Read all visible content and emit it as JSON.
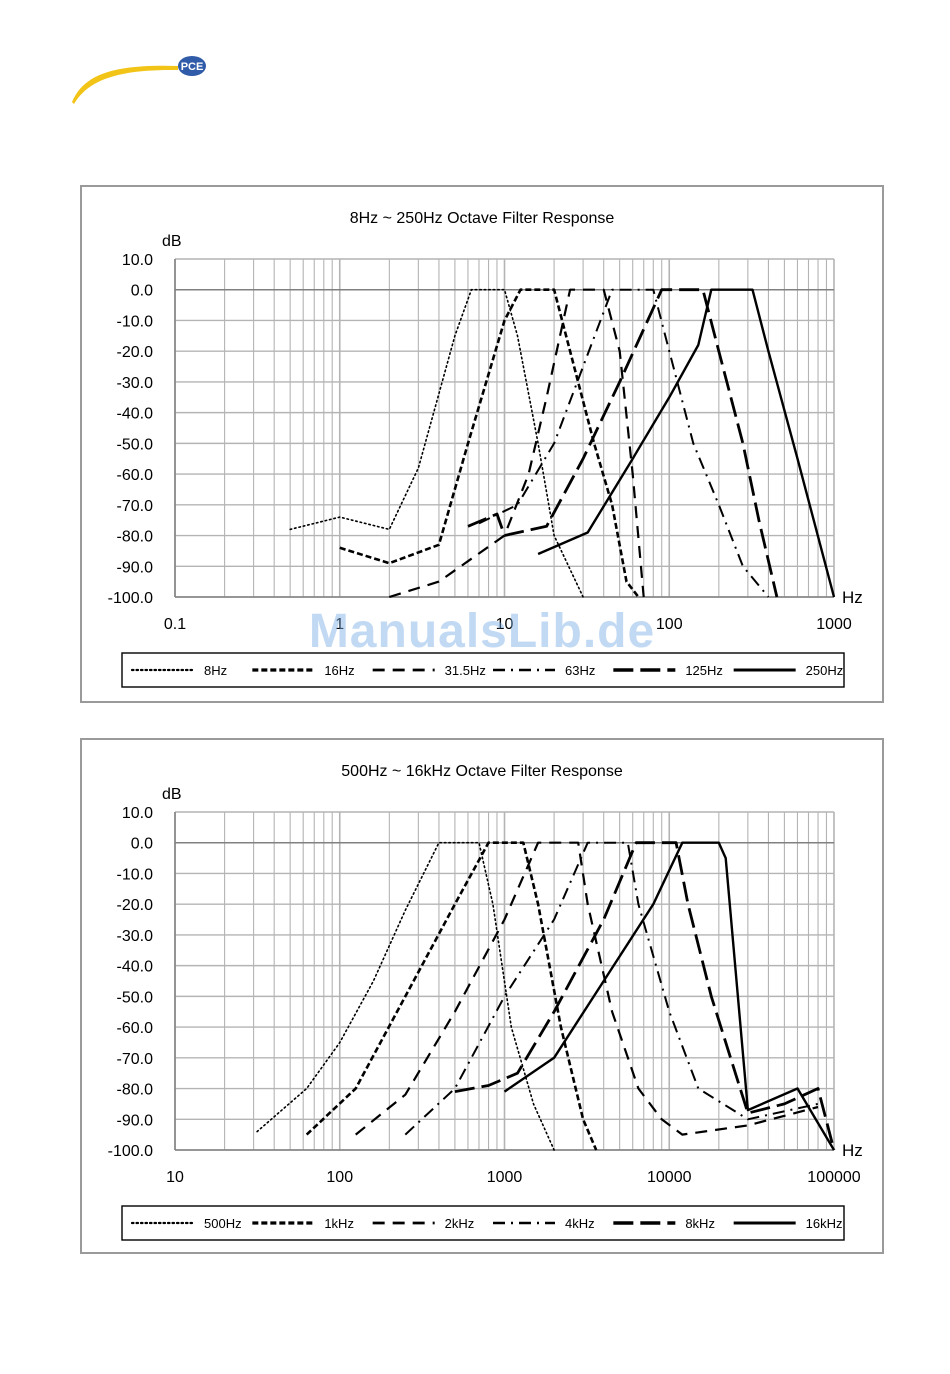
{
  "header": {
    "logo_text": "PCE",
    "logo_color": "#2f5ba8",
    "swoosh_color": "#f2c417"
  },
  "watermark": "ManualsLib.de",
  "chart_data": [
    {
      "type": "line",
      "title": "8Hz ~ 250Hz Octave Filter Response",
      "ylabel": "dB",
      "xlabel": "Hz",
      "xscale": "log",
      "xlim": [
        0.1,
        1000
      ],
      "ylim": [
        -100,
        10
      ],
      "x_ticks": [
        "0.1",
        "1",
        "10",
        "100",
        "1000"
      ],
      "y_ticks": [
        "10.0",
        "0.0",
        "-10.0",
        "-20.0",
        "-30.0",
        "-40.0",
        "-50.0",
        "-60.0",
        "-70.0",
        "-80.0",
        "-90.0",
        "-100.0"
      ],
      "grid": true,
      "legend": "bottom",
      "series": [
        {
          "name": "8Hz",
          "style": "dotted",
          "points": [
            [
              0.5,
              -78
            ],
            [
              1,
              -74
            ],
            [
              2,
              -78
            ],
            [
              3,
              -58
            ],
            [
              5,
              -15
            ],
            [
              6.3,
              0
            ],
            [
              10,
              0
            ],
            [
              12,
              -15
            ],
            [
              16,
              -50
            ],
            [
              20,
              -80
            ],
            [
              30,
              -100
            ]
          ]
        },
        {
          "name": "16Hz",
          "style": "dash-short",
          "points": [
            [
              1,
              -84
            ],
            [
              2,
              -89
            ],
            [
              4,
              -83
            ],
            [
              6,
              -50
            ],
            [
              10,
              -10
            ],
            [
              12.5,
              0
            ],
            [
              20,
              0
            ],
            [
              25,
              -20
            ],
            [
              35,
              -50
            ],
            [
              45,
              -70
            ],
            [
              55,
              -95
            ],
            [
              65,
              -100
            ]
          ]
        },
        {
          "name": "31.5Hz",
          "style": "dash-medium",
          "points": [
            [
              2,
              -100
            ],
            [
              4,
              -95
            ],
            [
              10,
              -80
            ],
            [
              14,
              -60
            ],
            [
              18,
              -35
            ],
            [
              25,
              0
            ],
            [
              40,
              0
            ],
            [
              50,
              -20
            ],
            [
              60,
              -60
            ],
            [
              70,
              -100
            ]
          ]
        },
        {
          "name": "63Hz",
          "style": "dash-dot",
          "points": [
            [
              7,
              -76
            ],
            [
              12,
              -70
            ],
            [
              20,
              -50
            ],
            [
              30,
              -25
            ],
            [
              45,
              0
            ],
            [
              80,
              0
            ],
            [
              100,
              -20
            ],
            [
              140,
              -50
            ],
            [
              200,
              -70
            ],
            [
              280,
              -90
            ],
            [
              400,
              -100
            ]
          ]
        },
        {
          "name": "125Hz",
          "style": "dash-long",
          "points": [
            [
              6,
              -77
            ],
            [
              9,
              -73
            ],
            [
              10,
              -80
            ],
            [
              18,
              -77
            ],
            [
              30,
              -55
            ],
            [
              50,
              -30
            ],
            [
              90,
              0
            ],
            [
              160,
              0
            ],
            [
              200,
              -20
            ],
            [
              280,
              -50
            ],
            [
              350,
              -75
            ],
            [
              450,
              -100
            ]
          ]
        },
        {
          "name": "250Hz",
          "style": "solid",
          "points": [
            [
              16,
              -86
            ],
            [
              32,
              -79
            ],
            [
              60,
              -55
            ],
            [
              100,
              -35
            ],
            [
              150,
              -18
            ],
            [
              180,
              0
            ],
            [
              320,
              0
            ],
            [
              400,
              -20
            ],
            [
              600,
              -55
            ],
            [
              1000,
              -100
            ]
          ]
        }
      ]
    },
    {
      "type": "line",
      "title": "500Hz ~ 16kHz Octave Filter Response",
      "ylabel": "dB",
      "xlabel": "Hz",
      "xscale": "log",
      "xlim": [
        10,
        100000
      ],
      "ylim": [
        -100,
        10
      ],
      "x_ticks": [
        "10",
        "100",
        "1000",
        "10000",
        "100000"
      ],
      "y_ticks": [
        "10.0",
        "0.0",
        "-10.0",
        "-20.0",
        "-30.0",
        "-40.0",
        "-50.0",
        "-60.0",
        "-70.0",
        "-80.0",
        "-90.0",
        "-100.0"
      ],
      "grid": true,
      "legend": "bottom",
      "series": [
        {
          "name": "500Hz",
          "style": "dotted",
          "points": [
            [
              31.5,
              -94
            ],
            [
              63,
              -80
            ],
            [
              100,
              -65
            ],
            [
              160,
              -45
            ],
            [
              250,
              -22
            ],
            [
              400,
              0
            ],
            [
              700,
              0
            ],
            [
              850,
              -20
            ],
            [
              1100,
              -60
            ],
            [
              1500,
              -85
            ],
            [
              2000,
              -100
            ]
          ]
        },
        {
          "name": "1kHz",
          "style": "dash-short",
          "points": [
            [
              63,
              -95
            ],
            [
              125,
              -80
            ],
            [
              250,
              -50
            ],
            [
              500,
              -20
            ],
            [
              800,
              0
            ],
            [
              1300,
              0
            ],
            [
              1600,
              -20
            ],
            [
              2200,
              -60
            ],
            [
              3000,
              -90
            ],
            [
              3600,
              -100
            ]
          ]
        },
        {
          "name": "2kHz",
          "style": "dash-medium",
          "points": [
            [
              125,
              -95
            ],
            [
              250,
              -82
            ],
            [
              500,
              -55
            ],
            [
              1000,
              -25
            ],
            [
              1600,
              0
            ],
            [
              2800,
              0
            ],
            [
              3200,
              -20
            ],
            [
              4500,
              -55
            ],
            [
              6500,
              -80
            ],
            [
              9000,
              -90
            ],
            [
              12000,
              -95
            ],
            [
              30000,
              -92
            ],
            [
              80000,
              -86
            ]
          ]
        },
        {
          "name": "4kHz",
          "style": "dash-dot",
          "points": [
            [
              250,
              -95
            ],
            [
              500,
              -80
            ],
            [
              1000,
              -50
            ],
            [
              2000,
              -25
            ],
            [
              3200,
              0
            ],
            [
              5600,
              0
            ],
            [
              6500,
              -20
            ],
            [
              10000,
              -55
            ],
            [
              15000,
              -80
            ],
            [
              30000,
              -90
            ],
            [
              80000,
              -85
            ]
          ]
        },
        {
          "name": "8kHz",
          "style": "dash-long",
          "points": [
            [
              500,
              -81
            ],
            [
              800,
              -79
            ],
            [
              1200,
              -75
            ],
            [
              2000,
              -55
            ],
            [
              4000,
              -25
            ],
            [
              6300,
              0
            ],
            [
              11000,
              0
            ],
            [
              13000,
              -20
            ],
            [
              18000,
              -50
            ],
            [
              30000,
              -88
            ],
            [
              50000,
              -85
            ],
            [
              80000,
              -80
            ],
            [
              100000,
              -100
            ]
          ]
        },
        {
          "name": "16kHz",
          "style": "solid",
          "points": [
            [
              1000,
              -81
            ],
            [
              2000,
              -70
            ],
            [
              4000,
              -45
            ],
            [
              8000,
              -20
            ],
            [
              12000,
              0
            ],
            [
              20000,
              0
            ],
            [
              22000,
              -5
            ],
            [
              30000,
              -87
            ],
            [
              60000,
              -80
            ],
            [
              100000,
              -100
            ]
          ]
        }
      ]
    }
  ]
}
